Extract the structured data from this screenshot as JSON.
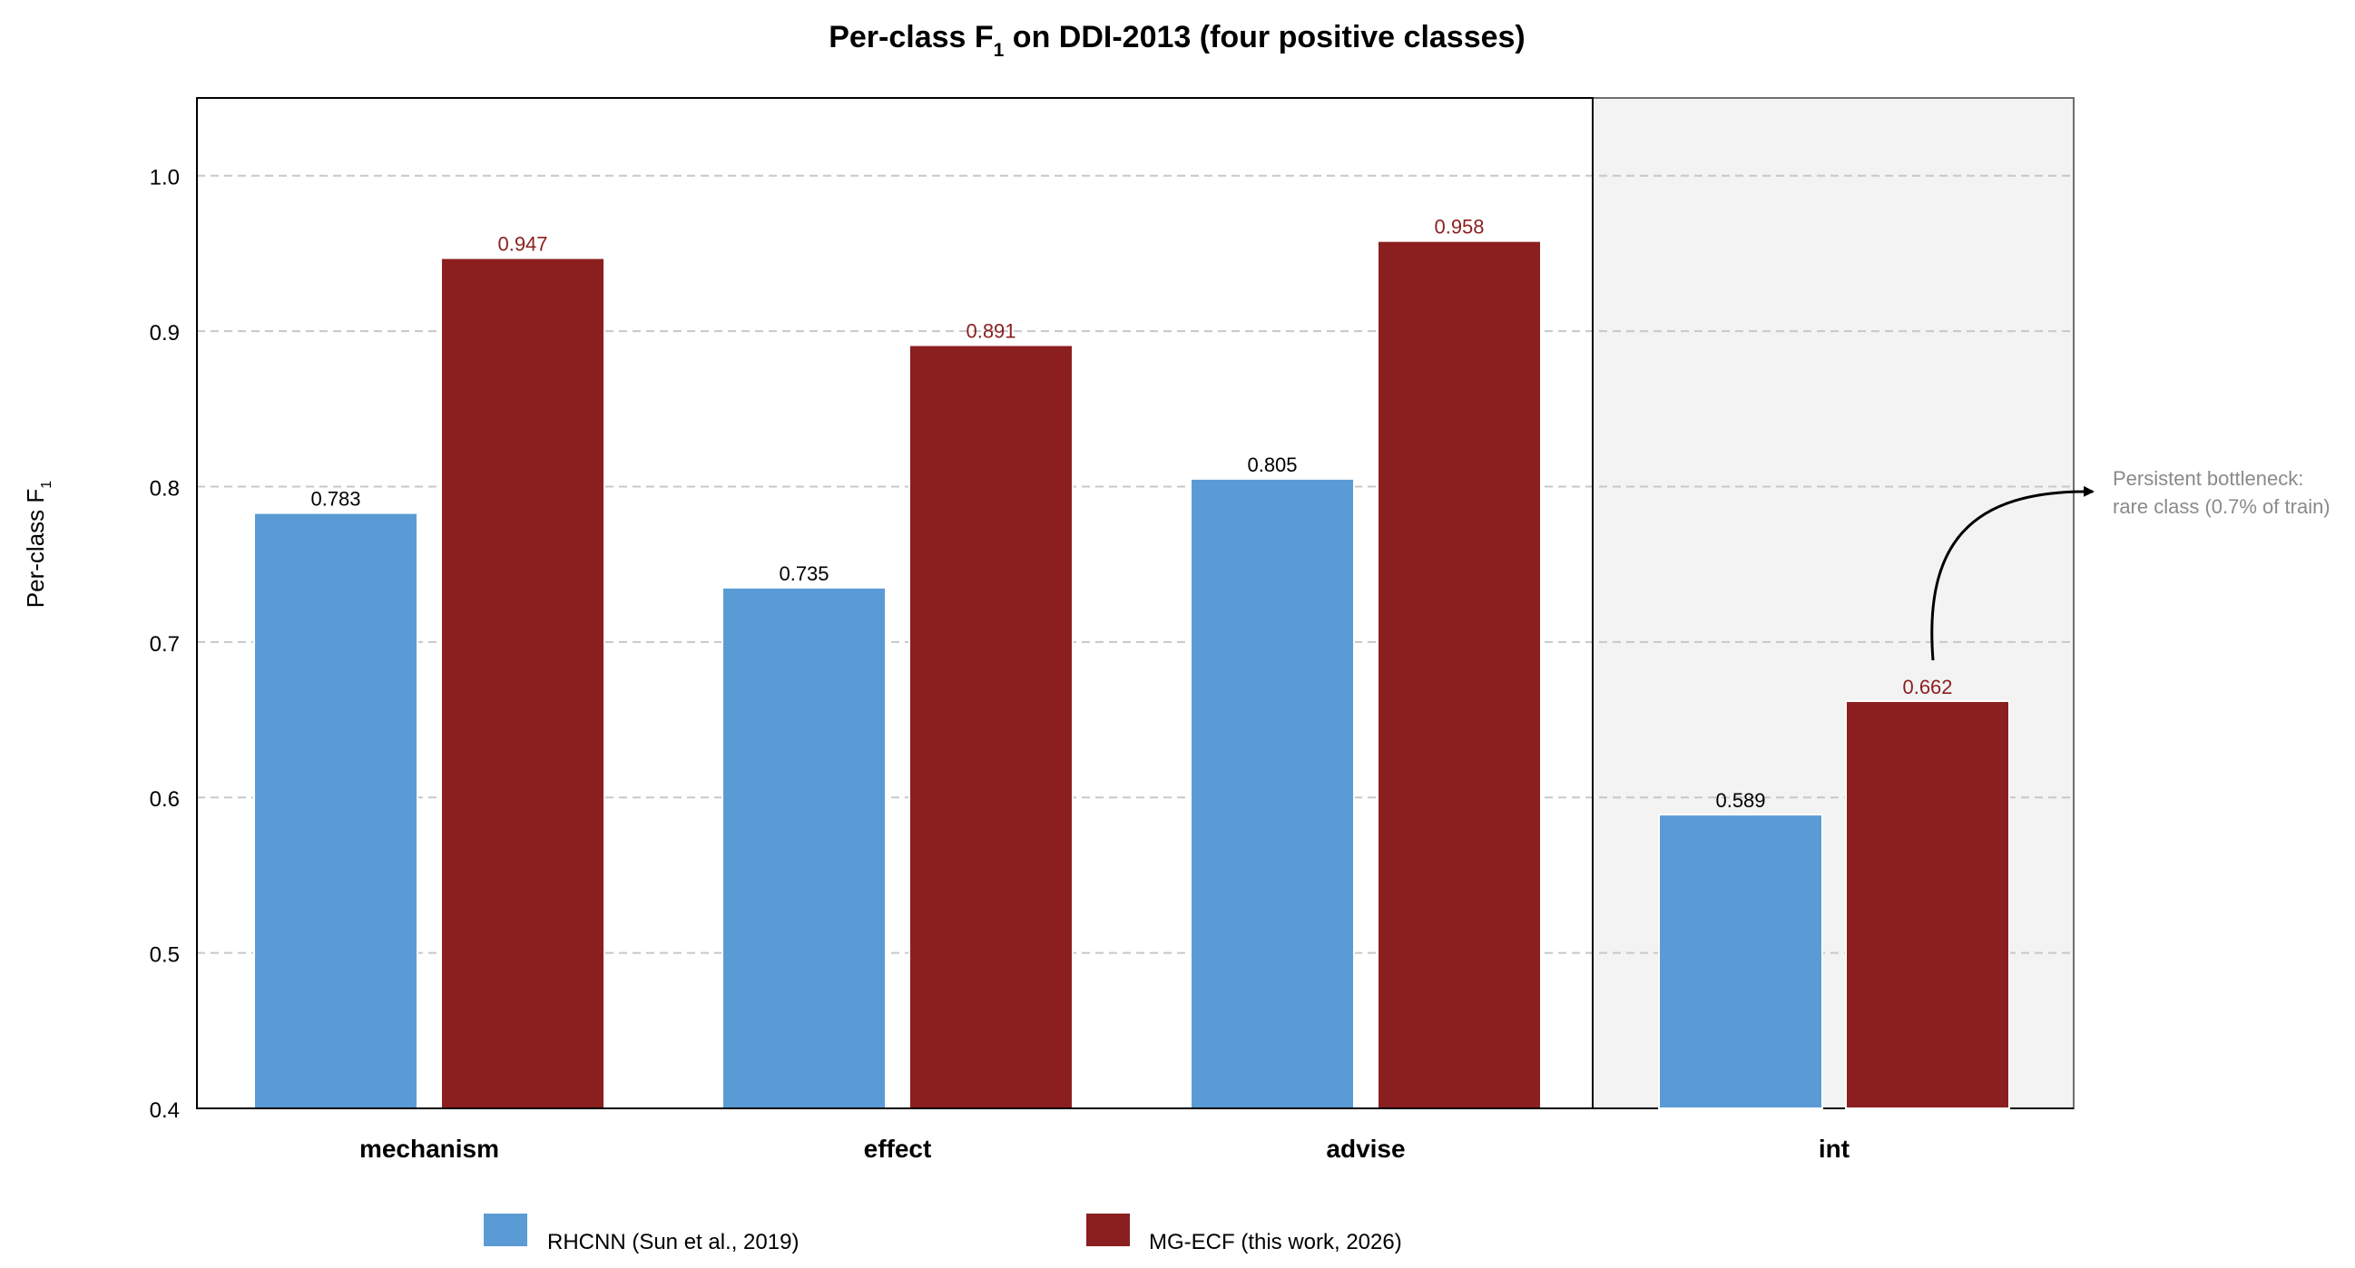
{
  "chart_data": {
    "type": "bar",
    "title_main": "Per-class F",
    "title_sub": "1",
    "title_rest": " on DDI-2013 (four positive classes)",
    "ylabel_main": "Per-class F",
    "ylabel_sub": "1",
    "xlabel": "",
    "categories": [
      "mechanism",
      "effect",
      "advise",
      "int"
    ],
    "ylim": [
      0.4,
      1.05
    ],
    "yticks": [
      "0.4",
      "0.5",
      "0.6",
      "0.7",
      "0.8",
      "0.9",
      "1.0"
    ],
    "grid": true,
    "legend_position": "bottom",
    "highlighted_category": "int",
    "series": [
      {
        "name": "RHCNN (Sun et al., 2019)",
        "values": [
          0.783,
          0.735,
          0.805,
          0.589
        ],
        "labels": [
          "0.783",
          "0.735",
          "0.805",
          "0.589"
        ],
        "color": "#5b9bd5",
        "label_color": "#000000"
      },
      {
        "name": "MG-ECF (this work, 2026)",
        "values": [
          0.947,
          0.891,
          0.958,
          0.662
        ],
        "labels": [
          "0.947",
          "0.891",
          "0.958",
          "0.662"
        ],
        "color": "#8b1f1f",
        "label_color": "#8b1f1f"
      }
    ],
    "annotation": {
      "line1": "Persistent bottleneck:",
      "line2": "rare class (0.7% of train)"
    }
  }
}
